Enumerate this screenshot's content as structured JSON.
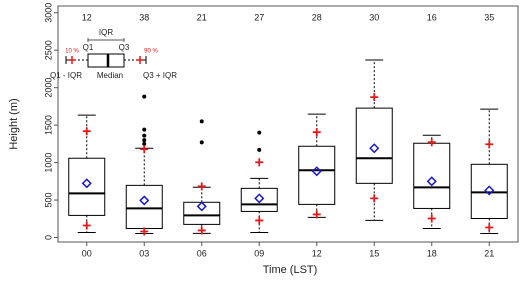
{
  "chart_data": {
    "type": "box",
    "x_label": "Time (LST)",
    "y_label": "Height (m)",
    "categories": [
      "00",
      "03",
      "06",
      "09",
      "12",
      "15",
      "18",
      "21"
    ],
    "counts": [
      12,
      38,
      21,
      27,
      28,
      30,
      16,
      35
    ],
    "whisker_low": [
      67,
      54,
      55,
      67,
      268,
      228,
      120,
      54
    ],
    "q1": [
      295,
      120,
      175,
      348,
      442,
      723,
      388,
      254
    ],
    "median": [
      589,
      388,
      295,
      442,
      897,
      1058,
      669,
      602
    ],
    "q3": [
      1058,
      696,
      470,
      656,
      1218,
      1727,
      1258,
      977
    ],
    "whisker_high": [
      1633,
      1191,
      670,
      790,
      1646,
      2370,
      1365,
      1713
    ],
    "mean": [
      723,
      495,
      415,
      522,
      884,
      1191,
      750,
      629
    ],
    "p10": [
      160,
      80,
      94,
      228,
      308,
      522,
      254,
      134
    ],
    "p90": [
      1419,
      1178,
      683,
      1004,
      1406,
      1874,
      1272,
      1245
    ],
    "outliers": [
      [],
      [
        1880,
        1440,
        1360,
        1300,
        1250
      ],
      [
        1550,
        1270
      ],
      [
        1400,
        1170
      ],
      [],
      [],
      [],
      []
    ],
    "ylim": [
      -60,
      3090
    ],
    "yticks": [
      0,
      500,
      1000,
      1500,
      2000,
      2500,
      3000
    ],
    "box_color": "#000000",
    "mean_color": "#1a1acc",
    "percentile_color": "#e31a1c",
    "outlier_color": "#000000",
    "key": {
      "iqr": "IQR",
      "q1": "Q1",
      "q3": "Q3",
      "p10": "10 %",
      "p90": "90 %",
      "low": "Q1 - IQR",
      "median": "Median",
      "high": "Q3 + IQR"
    }
  }
}
